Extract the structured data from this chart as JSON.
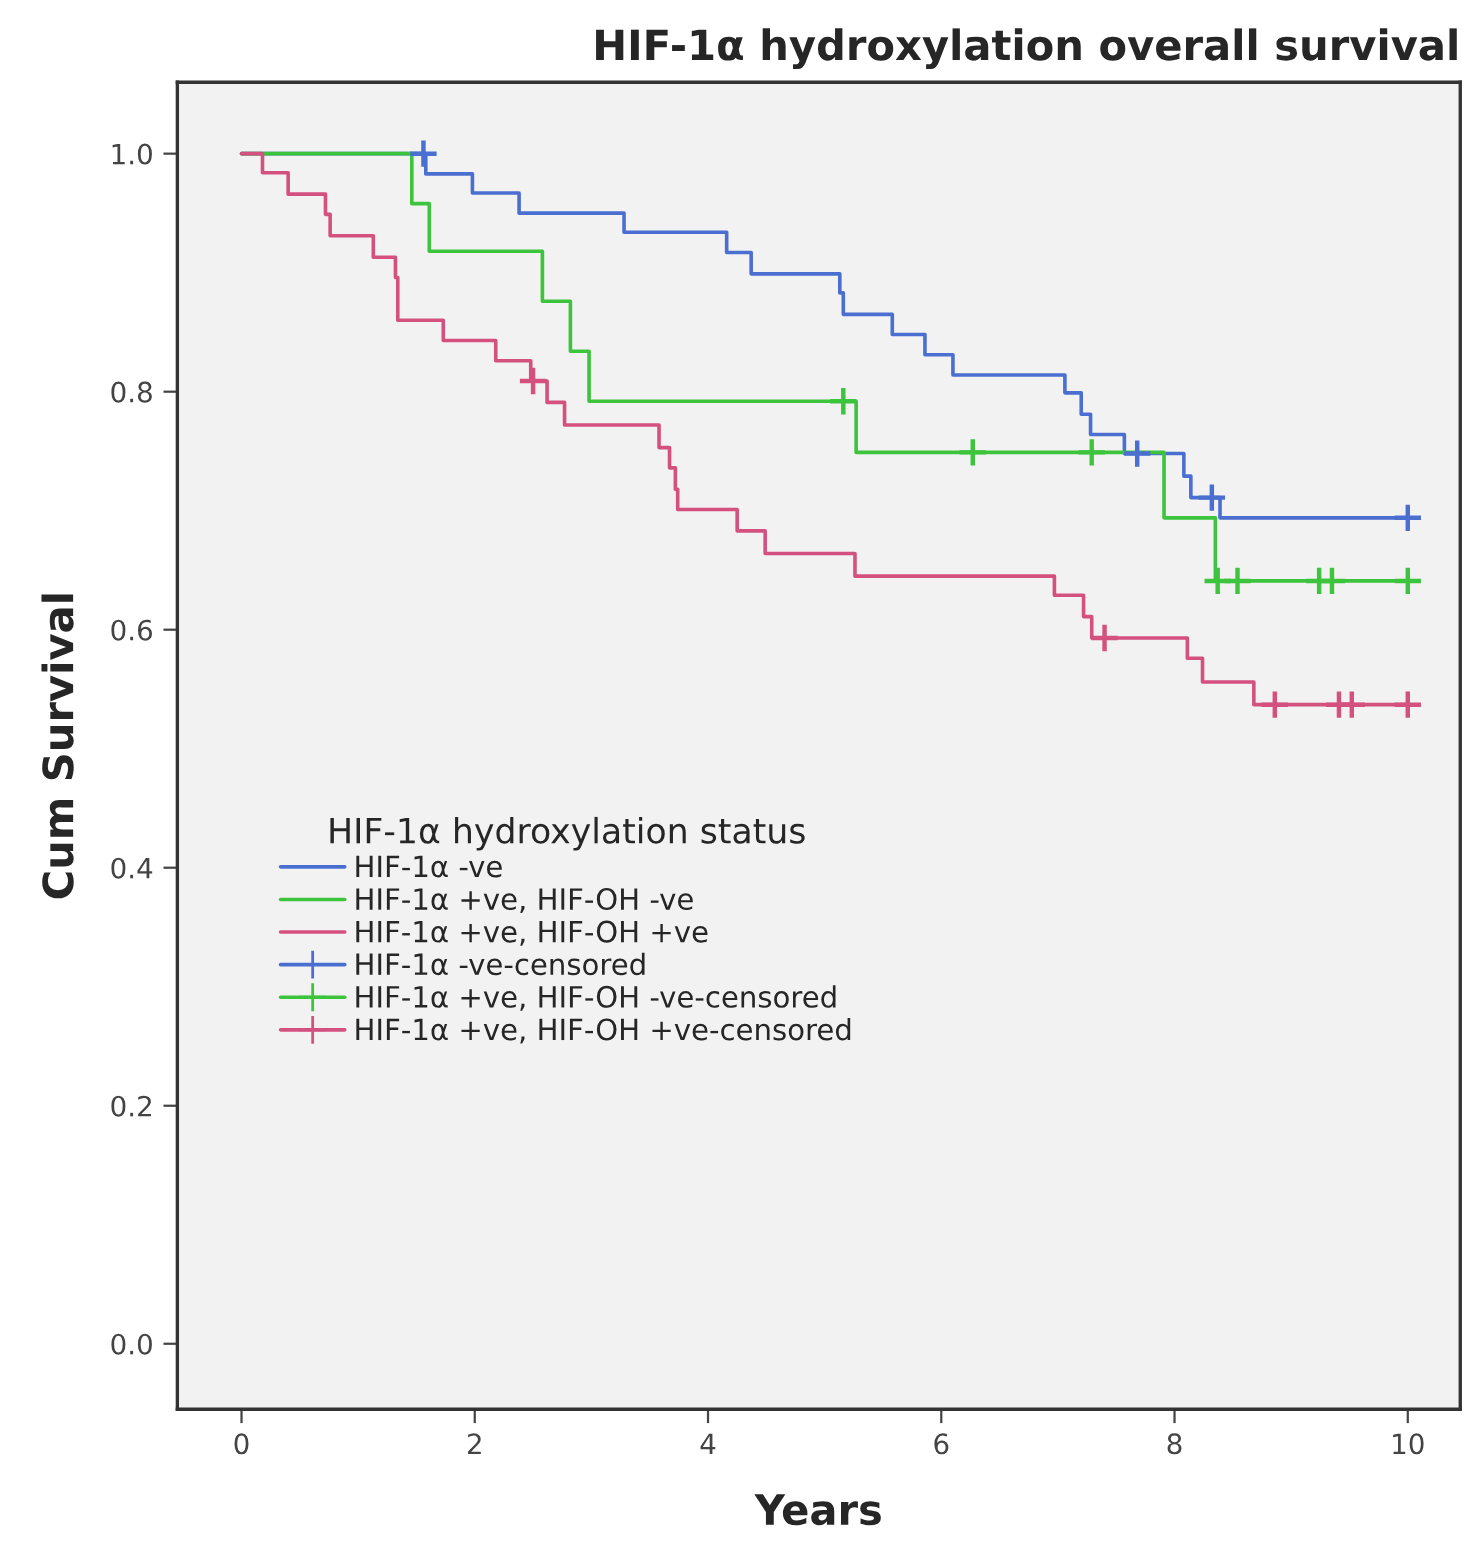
{
  "chart_data": {
    "type": "step",
    "title": "HIF-1α hydroxylation overall survival",
    "xlabel": "Years",
    "ylabel": "Cum Survival",
    "legend_title": "HIF-1α hydroxylation status",
    "xlim": [
      -0.55,
      10.45
    ],
    "ylim": [
      -0.055,
      1.06
    ],
    "xticks": [
      0,
      2,
      4,
      6,
      8,
      10
    ],
    "yticks": [
      {
        "value": 0,
        "label": "0.0"
      },
      0.2,
      0.4,
      0.6,
      0.8,
      {
        "value": 1,
        "label": "1.0"
      }
    ],
    "grid": false,
    "legend": "left",
    "series": [
      {
        "name": "HIF-1α -ve",
        "color": "#4a6fd0",
        "x": [
          0,
          1.58,
          1.98,
          2.38,
          3.28,
          4.16,
          4.37,
          5.13,
          5.16,
          5.58,
          5.86,
          6.1,
          7.06,
          7.2,
          7.28,
          7.57,
          8.08,
          8.14,
          8.39,
          10.0
        ],
        "values": [
          1.0,
          0.983,
          0.967,
          0.95,
          0.934,
          0.917,
          0.899,
          0.883,
          0.865,
          0.848,
          0.831,
          0.814,
          0.799,
          0.781,
          0.764,
          0.748,
          0.729,
          0.711,
          0.694,
          0.694
        ]
      },
      {
        "name": "HIF-1α +ve, HIF-OH -ve",
        "color": "#3cc43c",
        "x": [
          0,
          1.46,
          1.61,
          2.58,
          2.82,
          2.98,
          5.27,
          7.91,
          8.35,
          10.0
        ],
        "values": [
          1.0,
          0.958,
          0.918,
          0.876,
          0.834,
          0.792,
          0.749,
          0.694,
          0.641,
          0.641
        ]
      },
      {
        "name": "HIF-1α +ve, HIF-OH +ve",
        "color": "#d4507f",
        "x": [
          0,
          0.18,
          0.4,
          0.72,
          0.76,
          1.13,
          1.32,
          1.34,
          1.73,
          2.18,
          2.48,
          2.62,
          2.77,
          3.58,
          3.67,
          3.72,
          3.74,
          4.25,
          4.49,
          5.26,
          6.97,
          7.22,
          7.29,
          8.11,
          8.24,
          8.68,
          10.0
        ],
        "values": [
          1.0,
          0.984,
          0.966,
          0.949,
          0.931,
          0.913,
          0.896,
          0.86,
          0.843,
          0.826,
          0.809,
          0.791,
          0.772,
          0.753,
          0.736,
          0.718,
          0.701,
          0.683,
          0.664,
          0.645,
          0.629,
          0.611,
          0.593,
          0.576,
          0.556,
          0.537,
          0.537
        ]
      },
      {
        "name": "HIF-1α -ve-censored",
        "type": "scatter",
        "marker": "cross",
        "color": "#4a6fd0",
        "x": [
          1.56,
          7.68,
          8.32,
          10.0
        ],
        "values": [
          1.0,
          0.748,
          0.711,
          0.694
        ]
      },
      {
        "name": "HIF-1α +ve, HIF-OH -ve-censored",
        "type": "scatter",
        "marker": "cross",
        "color": "#3cc43c",
        "x": [
          5.16,
          6.27,
          7.29,
          8.37,
          8.54,
          9.24,
          9.35,
          10.0
        ],
        "values": [
          0.792,
          0.749,
          0.749,
          0.641,
          0.641,
          0.641,
          0.641,
          0.641
        ]
      },
      {
        "name": "HIF-1α +ve, HIF-OH +ve-censored",
        "type": "scatter",
        "marker": "cross",
        "color": "#d4507f",
        "x": [
          2.5,
          7.4,
          8.86,
          9.41,
          9.52,
          10.0
        ],
        "values": [
          0.809,
          0.593,
          0.537,
          0.537,
          0.537,
          0.537
        ]
      }
    ]
  }
}
